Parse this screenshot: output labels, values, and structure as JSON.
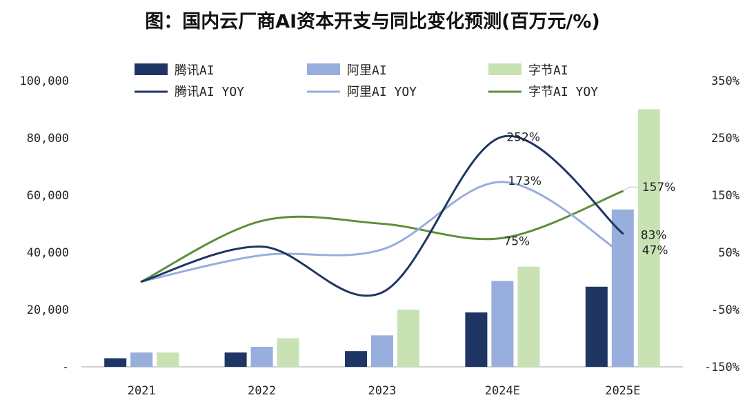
{
  "chart_data": {
    "type": "bar",
    "title": "图：国内云厂商AI资本开支与同比变化预测(百万元/%)",
    "categories": [
      "2021",
      "2022",
      "2023",
      "2024E",
      "2025E"
    ],
    "series": [
      {
        "name": "腾讯AI",
        "kind": "bar",
        "axis": "left",
        "color": "#1f3564",
        "values": [
          3000,
          5000,
          5500,
          19000,
          28000
        ]
      },
      {
        "name": "阿里AI",
        "kind": "bar",
        "axis": "left",
        "color": "#98aedd",
        "values": [
          5000,
          7000,
          11000,
          30000,
          55000
        ]
      },
      {
        "name": "字节AI",
        "kind": "bar",
        "axis": "left",
        "color": "#c9e2b3",
        "values": [
          5000,
          10000,
          20000,
          35000,
          90000
        ]
      },
      {
        "name": "腾讯AI YOY",
        "kind": "line",
        "axis": "right",
        "color": "#1f3564",
        "values": [
          -1,
          60,
          -20,
          252,
          83
        ]
      },
      {
        "name": "阿里AI YOY",
        "kind": "line",
        "axis": "right",
        "color": "#98aedd",
        "values": [
          -1,
          45,
          55,
          173,
          47
        ]
      },
      {
        "name": "字节AI YOY",
        "kind": "line",
        "axis": "right",
        "color": "#5d8f3a",
        "values": [
          -1,
          105,
          100,
          75,
          157
        ]
      }
    ],
    "annotations": [
      {
        "text": "252%",
        "series": "腾讯AI YOY",
        "category": "2024E"
      },
      {
        "text": "173%",
        "series": "阿里AI YOY",
        "category": "2024E"
      },
      {
        "text": "75%",
        "series": "字节AI YOY",
        "category": "2024E"
      },
      {
        "text": "157%",
        "series": "字节AI YOY",
        "category": "2025E"
      },
      {
        "text": "47%",
        "series": "阿里AI YOY",
        "category": "2025E"
      },
      {
        "text": "83%",
        "series": "腾讯AI YOY",
        "category": "2025E"
      }
    ],
    "y_left": {
      "ticks": [
        0,
        20000,
        40000,
        60000,
        80000,
        100000
      ],
      "tick_labels": [
        "-",
        "20,000",
        "40,000",
        "60,000",
        "80,000",
        "100,000"
      ],
      "ylim": [
        0,
        100000
      ]
    },
    "y_right": {
      "ticks": [
        -150,
        -50,
        50,
        150,
        250,
        350
      ],
      "tick_labels": [
        "-150%",
        "-50%",
        "50%",
        "150%",
        "250%",
        "350%"
      ],
      "ylim": [
        -150,
        350
      ]
    },
    "grid": false,
    "legend_position": "top"
  }
}
